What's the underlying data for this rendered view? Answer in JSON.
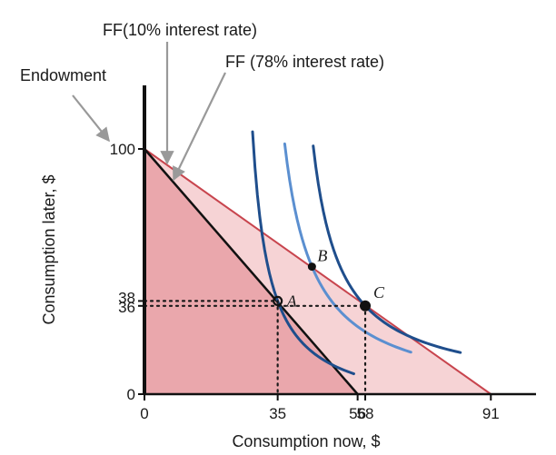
{
  "chart_data": {
    "type": "line",
    "title": "",
    "xlabel": "Consumption now, $",
    "ylabel": "Consumption later, $",
    "xlim": [
      0,
      100
    ],
    "ylim": [
      0,
      100
    ],
    "x_ticks": [
      0,
      35,
      56,
      58,
      91
    ],
    "y_ticks": [
      0,
      36,
      38,
      100
    ],
    "annotations": {
      "endowment": "Endowment",
      "ff10": "FF(10% interest rate)",
      "ff78": "FF (78% interest rate)"
    },
    "budget_lines": [
      {
        "label": "FF (78% interest rate)",
        "x_intercept": 56,
        "y_intercept": 100
      },
      {
        "label": "FF(10% interest rate)",
        "x_intercept": 91,
        "y_intercept": 100
      }
    ],
    "feasible_regions": [
      {
        "x_intercept": 91,
        "y_intercept": 100,
        "color": "#f6d3d5"
      },
      {
        "x_intercept": 56,
        "y_intercept": 100,
        "color": "#eaa7ac"
      }
    ],
    "points": [
      {
        "label": "A",
        "x": 35,
        "y": 38
      },
      {
        "label": "B",
        "x": 44,
        "y": 52
      },
      {
        "label": "C",
        "x": 58,
        "y": 36
      }
    ],
    "indifference_curves": [
      {
        "passes_through": "A",
        "color": "#1f4e8c"
      },
      {
        "passes_through": "B",
        "color": "#5b8fd0"
      },
      {
        "passes_through": "C",
        "color": "#1f4e8c"
      }
    ],
    "colors": {
      "budget_10": "#c8454e",
      "budget_78": "#111111",
      "dark_curve": "#1f4e8c",
      "light_curve": "#5b8fd0",
      "region_light": "#f6d3d5",
      "region_dark": "#eaa7ac",
      "arrow": "#999999"
    }
  }
}
